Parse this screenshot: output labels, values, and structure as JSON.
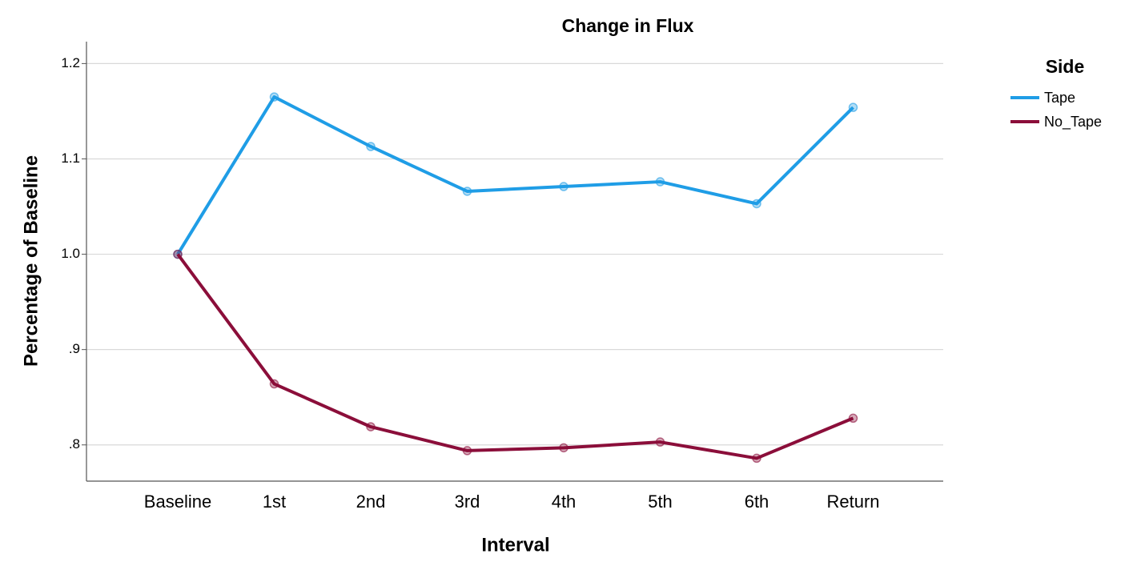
{
  "chart_data": {
    "type": "line",
    "title": "Change in Flux",
    "x_label": "Interval",
    "y_label": "Percentage of Baseline",
    "categories": [
      "Baseline",
      "1st",
      "2nd",
      "3rd",
      "4th",
      "5th",
      "6th",
      "Return"
    ],
    "series": [
      {
        "name": "Tape",
        "color": "#1f9de6",
        "values": [
          1.0,
          1.165,
          1.113,
          1.066,
          1.071,
          1.076,
          1.053,
          1.154
        ]
      },
      {
        "name": "No_Tape",
        "color": "#8b0e3a",
        "values": [
          1.0,
          0.864,
          0.819,
          0.794,
          0.797,
          0.803,
          0.786,
          0.828
        ]
      }
    ],
    "ylim": [
      0.762,
      1.223
    ],
    "yticks": [
      {
        "value": 0.8,
        "label": ".8"
      },
      {
        "value": 0.9,
        "label": ".9"
      },
      {
        "value": 1,
        "label": "1.0"
      },
      1.1,
      1.2
    ],
    "grid": true,
    "legend_title": "Side",
    "legend_position": "right"
  }
}
